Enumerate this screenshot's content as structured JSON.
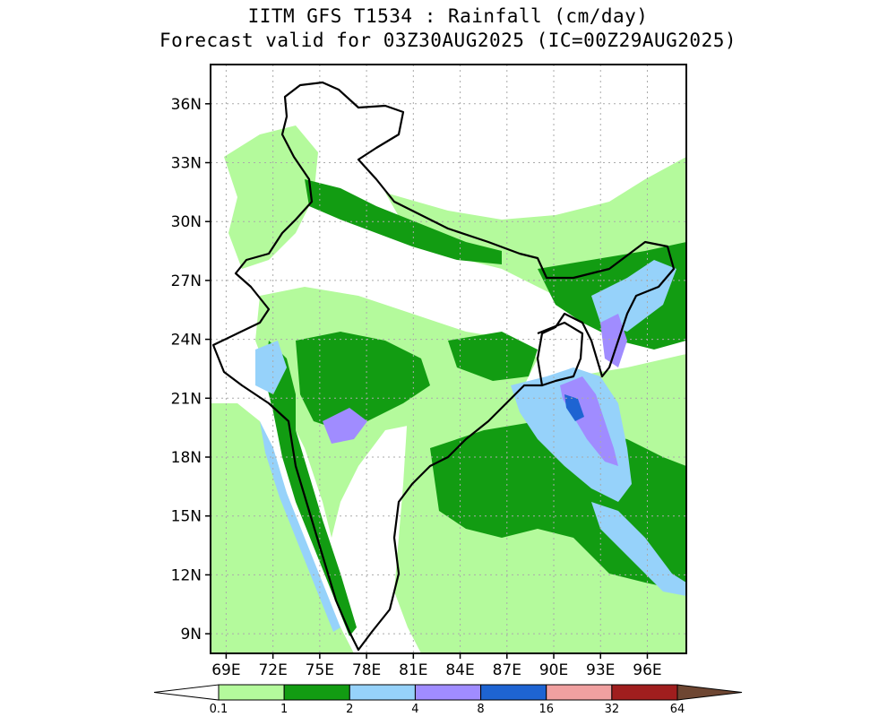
{
  "title": "IITM GFS T1534 : Rainfall (cm/day)",
  "subtitle": "Forecast valid for 03Z30AUG2025 (IC=00Z29AUG2025)",
  "lon_ticks": [
    "69E",
    "72E",
    "75E",
    "78E",
    "81E",
    "84E",
    "87E",
    "90E",
    "93E",
    "96E"
  ],
  "lat_ticks": [
    "36N",
    "33N",
    "30N",
    "27N",
    "24N",
    "21N",
    "18N",
    "15N",
    "12N",
    "9N"
  ],
  "extent": {
    "lon_min": 68,
    "lon_max": 98.5,
    "lat_min": 8,
    "lat_max": 38
  },
  "colorbar": {
    "labels": [
      "0.1",
      "1",
      "2",
      "4",
      "8",
      "16",
      "32",
      "64"
    ],
    "colors": [
      "#ffffff",
      "#b4fa9c",
      "#129c12",
      "#96d2fa",
      "#a08cff",
      "#1e64d2",
      "#f0a0a0",
      "#a01e1e",
      "#6e4632"
    ]
  },
  "grid": true
}
